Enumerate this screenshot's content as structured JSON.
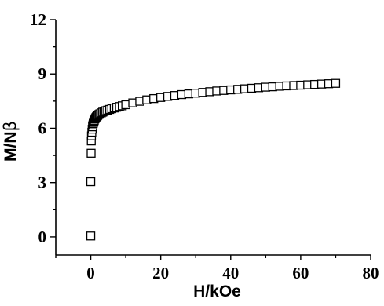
{
  "chart_data": {
    "type": "scatter",
    "title": "",
    "xlabel": "H/kOe",
    "ylabel_main": "M/N",
    "ylabel_symbol": "β",
    "xlim": [
      -10,
      80
    ],
    "ylim": [
      -1,
      12
    ],
    "xticks": [
      0,
      20,
      40,
      60,
      80
    ],
    "yticks": [
      0,
      3,
      6,
      9,
      12
    ],
    "marker": "open-square",
    "grid": false,
    "legend": "none",
    "colors": {
      "marker": "#000000",
      "axis": "#000000"
    },
    "series": [
      {
        "x": [
          0,
          0,
          0.1,
          0.15,
          0.2,
          0.3,
          0.4,
          0.5,
          0.6,
          0.7,
          0.8,
          0.9,
          1.0,
          1.2,
          1.4,
          1.6,
          1.8,
          2.0,
          2.3,
          2.6,
          3.0,
          3.4,
          3.8,
          4.3,
          4.8,
          5.4,
          6.0,
          6.7,
          7.4,
          8.2,
          9.0,
          10,
          12,
          14,
          16,
          18,
          20,
          22,
          24,
          26,
          28,
          30,
          32,
          34,
          36,
          38,
          40,
          42,
          44,
          46,
          48,
          50,
          52,
          54,
          56,
          58,
          60,
          62,
          64,
          66,
          68,
          70
        ],
        "y": [
          0.05,
          3.05,
          4.62,
          5.3,
          5.58,
          5.78,
          5.95,
          6.08,
          6.18,
          6.26,
          6.33,
          6.39,
          6.44,
          6.52,
          6.58,
          6.63,
          6.67,
          6.71,
          6.76,
          6.8,
          6.85,
          6.89,
          6.93,
          6.97,
          7.0,
          7.04,
          7.08,
          7.12,
          7.16,
          7.2,
          7.24,
          7.3,
          7.4,
          7.49,
          7.57,
          7.64,
          7.7,
          7.76,
          7.81,
          7.86,
          7.9,
          7.94,
          7.98,
          8.02,
          8.06,
          8.09,
          8.12,
          8.15,
          8.18,
          8.21,
          8.24,
          8.27,
          8.29,
          8.32,
          8.34,
          8.36,
          8.38,
          8.4,
          8.42,
          8.44,
          8.46,
          8.48
        ]
      }
    ]
  }
}
